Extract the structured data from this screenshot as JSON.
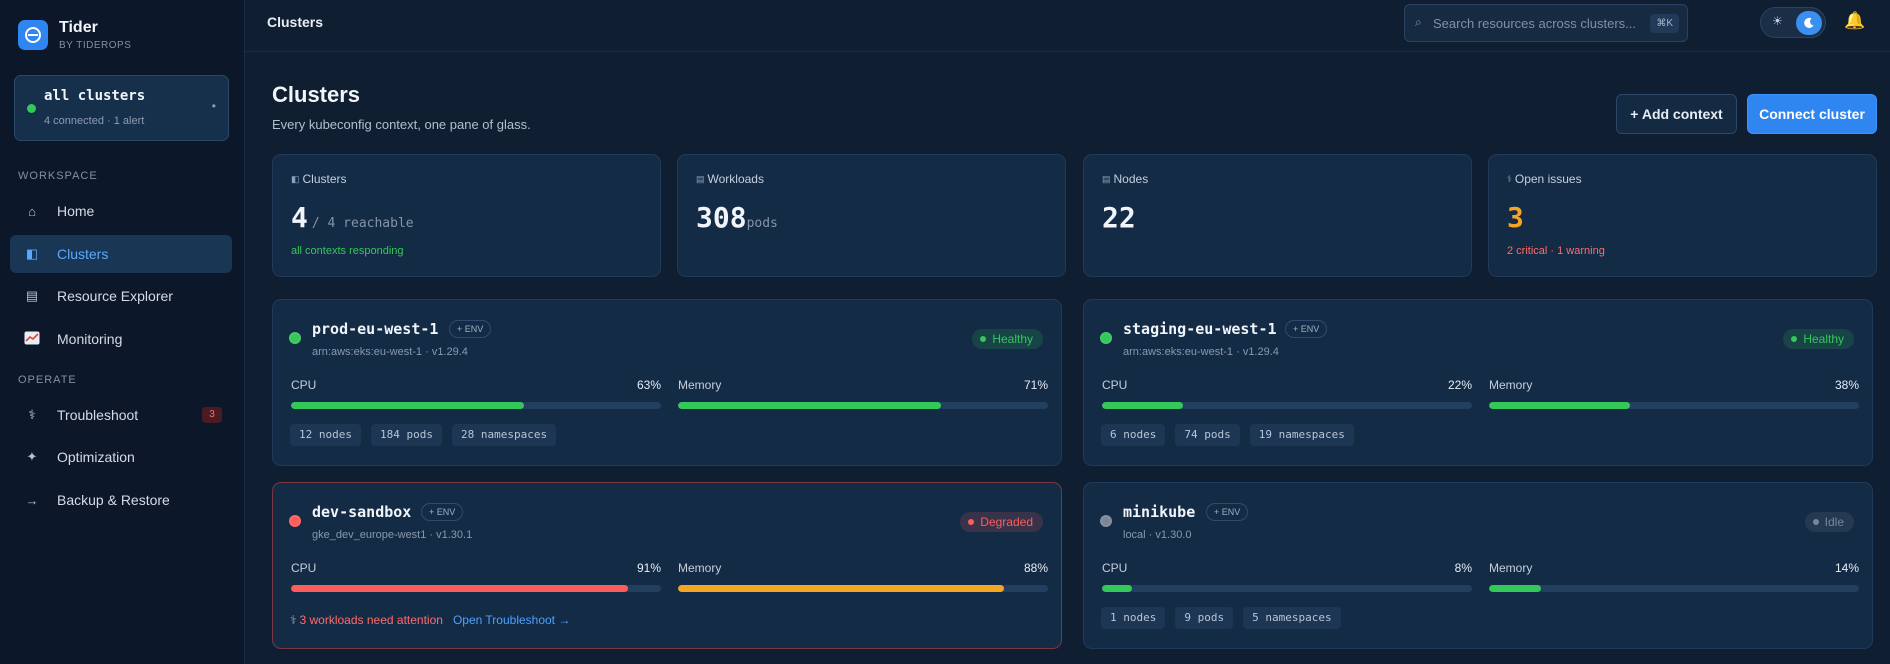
{
  "app": {
    "name": "Tider",
    "subtitle": "BY TIDEROPS"
  },
  "context": {
    "title": "all clusters",
    "subtitle": "4 connected · 1 alert"
  },
  "sidebar": {
    "workspace_label": "WORKSPACE",
    "operate_label": "OPERATE",
    "items": [
      {
        "label": "Home",
        "icon": "home-icon"
      },
      {
        "label": "Clusters",
        "icon": "clusters-icon",
        "active": true
      },
      {
        "label": "Resource Explorer",
        "icon": "list-icon"
      },
      {
        "label": "Monitoring",
        "icon": "chart-icon"
      },
      {
        "label": "Troubleshoot",
        "icon": "stethoscope-icon",
        "badge": "3"
      },
      {
        "label": "Optimization",
        "icon": "sparkle-icon"
      },
      {
        "label": "Backup & Restore",
        "icon": "arrow-right-icon"
      }
    ]
  },
  "topbar": {
    "title": "Clusters",
    "search_placeholder": "Search resources across clusters...",
    "search_shortcut": "⌘K"
  },
  "page": {
    "title": "Clusters",
    "subtitle": "Every kubeconfig context, one pane of glass.",
    "add_context_label": "+ Add context",
    "connect_cluster_label": "Connect cluster"
  },
  "stats": [
    {
      "label": "Clusters",
      "value": "4",
      "suffix": "/ 4 reachable",
      "note": "all contexts responding",
      "note_color": "#34c759"
    },
    {
      "label": "Workloads",
      "value": "308",
      "suffix": "pods",
      "note": "",
      "note_color": ""
    },
    {
      "label": "Nodes",
      "value": "22",
      "suffix": "",
      "note": "",
      "note_color": ""
    },
    {
      "label": "Open issues",
      "value": "3",
      "suffix": "",
      "note": "2 critical · 1 warning",
      "note_color": "#ff6b6b",
      "value_color": "#f5a524"
    }
  ],
  "clusters": [
    {
      "name": "prod-eu-west-1",
      "env": "+ ENV",
      "arn": "arn:aws:eks:eu-west-1 · v1.29.4",
      "status": "Healthy",
      "status_color": "#34c759",
      "cpu_label": "CPU",
      "cpu": 63,
      "cpu_pct": "63%",
      "mem_label": "Memory",
      "mem": 71,
      "mem_pct": "71%",
      "chips": [
        "12 nodes",
        "184 pods",
        "28 namespaces"
      ]
    },
    {
      "name": "staging-eu-west-1",
      "env": "+ ENV",
      "arn": "arn:aws:eks:eu-west-1 · v1.29.4",
      "status": "Healthy",
      "status_color": "#34c759",
      "cpu_label": "CPU",
      "cpu": 22,
      "cpu_pct": "22%",
      "mem_label": "Memory",
      "mem": 38,
      "mem_pct": "38%",
      "chips": [
        "6 nodes",
        "74 pods",
        "19 namespaces"
      ]
    },
    {
      "name": "dev-sandbox",
      "env": "+ ENV",
      "arn": "gke_dev_europe-west1 · v1.30.1",
      "status": "Degraded",
      "status_color": "#ff5c5c",
      "cpu_label": "CPU",
      "cpu": 91,
      "cpu_pct": "91%",
      "mem_label": "Memory",
      "mem": 88,
      "mem_pct": "88%",
      "alert": "3 workloads need attention",
      "alert_link": "Open Troubleshoot →"
    },
    {
      "name": "minikube",
      "env": "+ ENV",
      "arn": "local · v1.30.0",
      "status": "Idle",
      "status_color": "#7b8798",
      "cpu_label": "CPU",
      "cpu": 8,
      "cpu_pct": "8%",
      "mem_label": "Memory",
      "mem": 14,
      "mem_pct": "14%",
      "chips": [
        "1 nodes",
        "9 pods",
        "5 namespaces"
      ]
    }
  ],
  "colors": {
    "accent": "#2f86f0",
    "healthy": "#34c759",
    "critical": "#ff5c5c",
    "warning": "#f5a524"
  }
}
